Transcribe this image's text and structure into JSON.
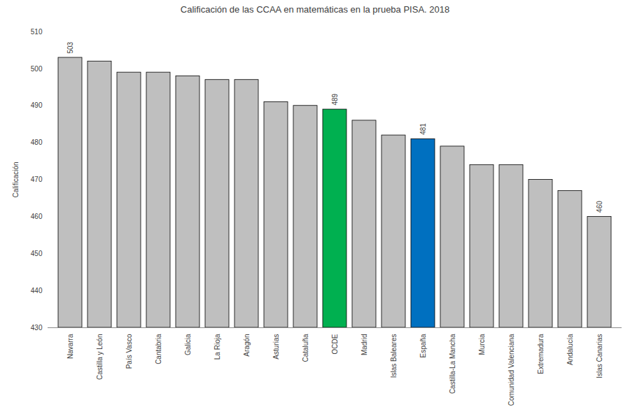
{
  "chart_data": {
    "type": "bar",
    "title": "Calificación de las CCAA en matemáticas en la prueba PISA. 2018",
    "y_label": "Calificación",
    "categories": [
      "Navarra",
      "Castilla y León",
      "País Vasco",
      "Cantabria",
      "Galicia",
      "La Rioja",
      "Aragón",
      "Asturias",
      "Cataluña",
      "OCDE",
      "Madrid",
      "Islas Baleares",
      "España",
      "Castilla-La Mancha",
      "Murcia",
      "Comunidad Valenciana",
      "Extremadura",
      "Andalucía",
      "Islas Canarias"
    ],
    "values": [
      503,
      502,
      499,
      499,
      498,
      497,
      497,
      491,
      490,
      489,
      486,
      482,
      481,
      479,
      474,
      474,
      470,
      467,
      460
    ],
    "value_labels": [
      "503",
      null,
      null,
      null,
      null,
      null,
      null,
      null,
      null,
      "489",
      null,
      null,
      "481",
      null,
      null,
      null,
      null,
      null,
      "460"
    ],
    "colors": [
      "#bfbfbf",
      "#bfbfbf",
      "#bfbfbf",
      "#bfbfbf",
      "#bfbfbf",
      "#bfbfbf",
      "#bfbfbf",
      "#bfbfbf",
      "#bfbfbf",
      "#00b050",
      "#bfbfbf",
      "#bfbfbf",
      "#0070c0",
      "#bfbfbf",
      "#bfbfbf",
      "#bfbfbf",
      "#bfbfbf",
      "#bfbfbf",
      "#bfbfbf"
    ],
    "ylim": [
      430,
      510
    ],
    "yticks": [
      430,
      440,
      450,
      460,
      470,
      480,
      490,
      500,
      510
    ],
    "grid": false,
    "data_labels": true
  }
}
